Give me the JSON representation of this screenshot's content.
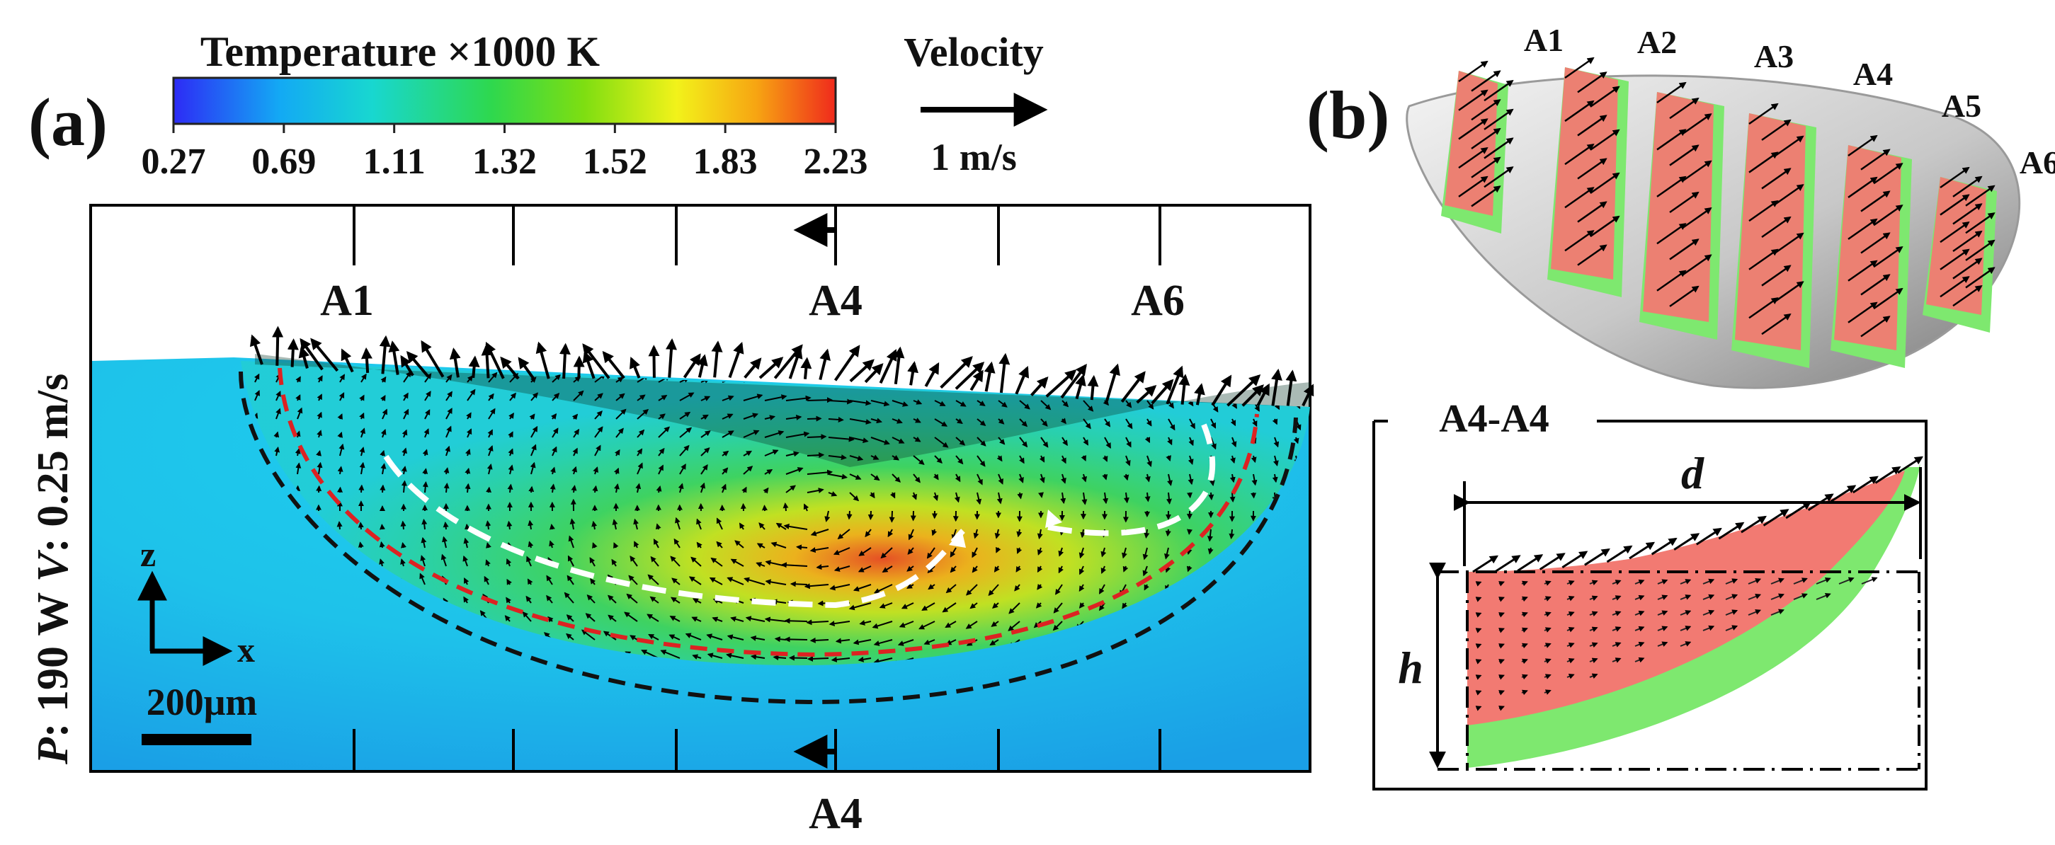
{
  "panel_a": {
    "panel_label": "(a)",
    "colorbar": {
      "title": "Temperature ×1000 K",
      "ticks": [
        "0.27",
        "0.69",
        "1.11",
        "1.32",
        "1.52",
        "1.83",
        "2.23"
      ],
      "colors": [
        "#2d2bf5",
        "#13a9f4",
        "#18d7d0",
        "#2ed84e",
        "#7ede11",
        "#f2f21a",
        "#f7a512",
        "#ef2a1c"
      ]
    },
    "velocity_legend": {
      "title": "Velocity",
      "scale": "1 m/s"
    },
    "side_label": {
      "p_symbol": "P",
      "p_text": ": 190 W ",
      "v_symbol": "V",
      "v_text": ": 0.25 m/s"
    },
    "section_labels": {
      "top_left": "A1",
      "top_mid": "A4",
      "top_right": "A6",
      "bottom": "A4"
    },
    "axes": {
      "z": "z",
      "x": "x"
    },
    "scale_bar": "200μm",
    "colors": {
      "substrate": "#1fc8e6",
      "fusion_line": "#dd2222",
      "mushy_line": "#111111",
      "flow_path": "#ffffff"
    }
  },
  "panel_b": {
    "panel_label": "(b)",
    "sections": [
      "A1",
      "A2",
      "A3",
      "A4",
      "A5",
      "A6"
    ],
    "detail_title": "A4-A4",
    "dim_width": "d",
    "dim_height": "h",
    "colors": {
      "section_fill": "#f27a72",
      "mushy_fill": "#7ee86f",
      "shell": "#d9d9d9"
    }
  }
}
